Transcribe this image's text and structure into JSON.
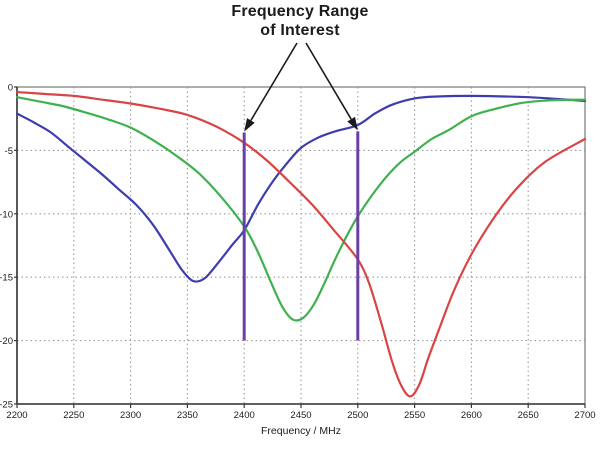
{
  "chart_data": {
    "type": "line",
    "title": "Frequency Range of Interest",
    "annotation": {
      "line1": "Frequency Range",
      "line2": "of Interest",
      "arrow_color": "#1b1b1b"
    },
    "xlabel": "Frequency / MHz",
    "ylabel": "",
    "xlim": [
      2200,
      2700
    ],
    "ylim": [
      -25,
      0
    ],
    "xticks": [
      2200,
      2250,
      2300,
      2350,
      2400,
      2450,
      2500,
      2550,
      2600,
      2650,
      2700
    ],
    "yticks": [
      0,
      -5,
      -10,
      -15,
      -20,
      -25
    ],
    "grid": "dotted",
    "legend": "none",
    "colors": {
      "grid": "#9b9b9b",
      "border": "#8c8c8c",
      "axis": "#3a3a3a",
      "tick_text": "#1c1c1c",
      "marker_line": "#6b3fa3"
    },
    "series": [
      {
        "name": "blue-curve",
        "color": "#3d3dae",
        "x": [
          2200,
          2215,
          2230,
          2245,
          2260,
          2275,
          2290,
          2305,
          2320,
          2335,
          2345,
          2355,
          2365,
          2375,
          2390,
          2400,
          2412,
          2424,
          2436,
          2450,
          2465,
          2480,
          2500,
          2515,
          2530,
          2550,
          2570,
          2600,
          2630,
          2660,
          2700
        ],
        "y": [
          -2.1,
          -2.8,
          -3.6,
          -4.7,
          -5.8,
          -6.9,
          -8.1,
          -9.3,
          -10.9,
          -13.0,
          -14.4,
          -15.3,
          -15.1,
          -14.1,
          -12.4,
          -11.3,
          -9.3,
          -7.6,
          -6.2,
          -4.8,
          -4.0,
          -3.5,
          -3.0,
          -2.1,
          -1.4,
          -0.9,
          -0.75,
          -0.7,
          -0.75,
          -0.85,
          -1.1
        ]
      },
      {
        "name": "green-curve",
        "color": "#3fb14f",
        "x": [
          2200,
          2220,
          2240,
          2260,
          2280,
          2300,
          2320,
          2340,
          2360,
          2380,
          2400,
          2412,
          2424,
          2434,
          2443,
          2452,
          2461,
          2470,
          2480,
          2490,
          2500,
          2512,
          2525,
          2538,
          2550,
          2565,
          2580,
          2600,
          2620,
          2645,
          2670,
          2700
        ],
        "y": [
          -0.8,
          -1.15,
          -1.5,
          -2.0,
          -2.55,
          -3.2,
          -4.2,
          -5.4,
          -6.8,
          -8.7,
          -11.0,
          -13.0,
          -15.5,
          -17.4,
          -18.35,
          -18.2,
          -17.2,
          -15.6,
          -13.6,
          -11.8,
          -10.2,
          -8.6,
          -7.1,
          -5.9,
          -5.1,
          -4.1,
          -3.4,
          -2.3,
          -1.75,
          -1.25,
          -1.05,
          -1.0
        ]
      },
      {
        "name": "red-curve",
        "color": "#d94444",
        "x": [
          2200,
          2225,
          2250,
          2275,
          2300,
          2325,
          2350,
          2375,
          2400,
          2420,
          2440,
          2460,
          2480,
          2500,
          2510,
          2520,
          2530,
          2538,
          2546,
          2554,
          2562,
          2572,
          2584,
          2600,
          2620,
          2640,
          2665,
          2700
        ],
        "y": [
          -0.4,
          -0.55,
          -0.7,
          -1.0,
          -1.3,
          -1.7,
          -2.2,
          -3.1,
          -4.4,
          -5.8,
          -7.5,
          -9.3,
          -11.4,
          -13.6,
          -15.5,
          -18.4,
          -21.6,
          -23.5,
          -24.4,
          -23.5,
          -21.4,
          -19.0,
          -16.2,
          -13.2,
          -10.3,
          -8.0,
          -5.9,
          -4.1
        ]
      }
    ],
    "frequency_markers": [
      {
        "x": 2400,
        "y_top": -3.6,
        "y_bottom": -20.0
      },
      {
        "x": 2500,
        "y_top": -3.5,
        "y_bottom": -20.0
      }
    ]
  }
}
